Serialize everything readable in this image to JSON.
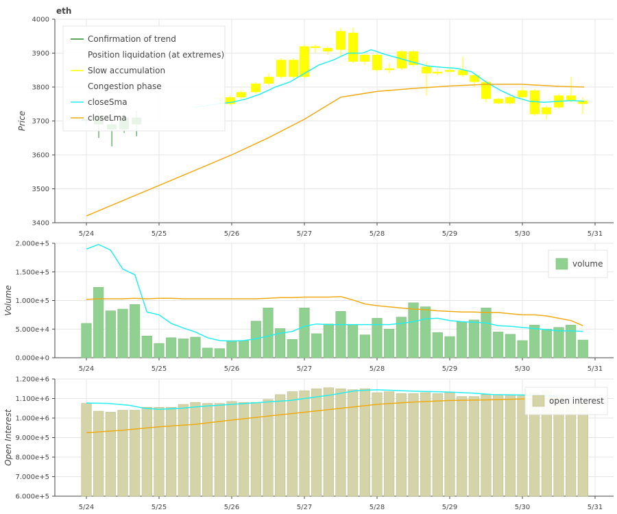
{
  "chart_data": [
    {
      "type": "candlestick",
      "title": "eth",
      "ylabel": "Price",
      "ylim": [
        3400,
        4000
      ],
      "yticks": [
        3400,
        3500,
        3600,
        3700,
        3800,
        3900,
        4000
      ],
      "xticks": [
        "5/24",
        "5/25",
        "5/26",
        "5/27",
        "5/28",
        "5/29",
        "5/30",
        "5/31"
      ],
      "x_start_day": 24,
      "colors": {
        "confirmation": "#228b22",
        "slow_accumulation": "#ffff00",
        "closeSma": "#22eeee",
        "closeLma": "#eeaa11"
      },
      "legend": [
        {
          "label": "Confirmation of trend",
          "color": "#228b22"
        },
        {
          "label": "Position liquidation (at extremes)",
          "color": ""
        },
        {
          "label": "Slow accumulation",
          "color": "#ffff00"
        },
        {
          "label": "Congestion phase",
          "color": ""
        },
        {
          "label": "closeSma",
          "color": "#22eeee"
        },
        {
          "label": "closeLma",
          "color": "#eeaa11"
        }
      ],
      "candles": [
        {
          "t": 0.0,
          "o": 3700,
          "h": 3715,
          "l": 3690,
          "c": 3705,
          "phase": "confirmation"
        },
        {
          "t": 0.17,
          "o": 3715,
          "h": 3725,
          "l": 3650,
          "c": 3690,
          "phase": "confirmation"
        },
        {
          "t": 0.35,
          "o": 3690,
          "h": 3700,
          "l": 3625,
          "c": 3675,
          "phase": "confirmation"
        },
        {
          "t": 0.52,
          "o": 3675,
          "h": 3720,
          "l": 3665,
          "c": 3710,
          "phase": "confirmation"
        },
        {
          "t": 0.69,
          "o": 3710,
          "h": 3730,
          "l": 3655,
          "c": 3690,
          "phase": "confirmation"
        },
        {
          "t": 1.84,
          "o": 3765,
          "h": 3778,
          "l": 3748,
          "c": 3768,
          "phase": "slow_accumulation"
        },
        {
          "t": 1.98,
          "o": 3750,
          "h": 3775,
          "l": 3745,
          "c": 3770,
          "phase": "slow_accumulation"
        },
        {
          "t": 2.13,
          "o": 3770,
          "h": 3790,
          "l": 3765,
          "c": 3785,
          "phase": "slow_accumulation"
        },
        {
          "t": 2.33,
          "o": 3785,
          "h": 3815,
          "l": 3780,
          "c": 3810,
          "phase": "slow_accumulation"
        },
        {
          "t": 2.51,
          "o": 3810,
          "h": 3840,
          "l": 3805,
          "c": 3830,
          "phase": "slow_accumulation"
        },
        {
          "t": 2.68,
          "o": 3830,
          "h": 3885,
          "l": 3825,
          "c": 3880,
          "phase": "slow_accumulation"
        },
        {
          "t": 2.85,
          "o": 3880,
          "h": 3885,
          "l": 3825,
          "c": 3830,
          "phase": "slow_accumulation"
        },
        {
          "t": 3.0,
          "o": 3830,
          "h": 3925,
          "l": 3825,
          "c": 3920,
          "phase": "slow_accumulation"
        },
        {
          "t": 3.15,
          "o": 3915,
          "h": 3925,
          "l": 3900,
          "c": 3920,
          "phase": "slow_accumulation"
        },
        {
          "t": 3.32,
          "o": 3905,
          "h": 3920,
          "l": 3895,
          "c": 3915,
          "phase": "slow_accumulation"
        },
        {
          "t": 3.5,
          "o": 3910,
          "h": 3975,
          "l": 3890,
          "c": 3965,
          "phase": "slow_accumulation"
        },
        {
          "t": 3.67,
          "o": 3960,
          "h": 3975,
          "l": 3870,
          "c": 3875,
          "phase": "slow_accumulation"
        },
        {
          "t": 3.83,
          "o": 3875,
          "h": 3900,
          "l": 3865,
          "c": 3895,
          "phase": "slow_accumulation"
        },
        {
          "t": 4.0,
          "o": 3895,
          "h": 3905,
          "l": 3845,
          "c": 3850,
          "phase": "slow_accumulation"
        },
        {
          "t": 4.17,
          "o": 3850,
          "h": 3870,
          "l": 3840,
          "c": 3855,
          "phase": "slow_accumulation"
        },
        {
          "t": 4.34,
          "o": 3855,
          "h": 3910,
          "l": 3850,
          "c": 3905,
          "phase": "slow_accumulation"
        },
        {
          "t": 4.5,
          "o": 3905,
          "h": 3910,
          "l": 3860,
          "c": 3865,
          "phase": "slow_accumulation"
        },
        {
          "t": 4.68,
          "o": 3860,
          "h": 3875,
          "l": 3775,
          "c": 3840,
          "phase": "slow_accumulation"
        },
        {
          "t": 4.83,
          "o": 3840,
          "h": 3855,
          "l": 3835,
          "c": 3845,
          "phase": "slow_accumulation"
        },
        {
          "t": 5.0,
          "o": 3845,
          "h": 3860,
          "l": 3840,
          "c": 3850,
          "phase": "slow_accumulation"
        },
        {
          "t": 5.18,
          "o": 3850,
          "h": 3890,
          "l": 3830,
          "c": 3835,
          "phase": "slow_accumulation"
        },
        {
          "t": 5.34,
          "o": 3835,
          "h": 3840,
          "l": 3800,
          "c": 3815,
          "phase": "slow_accumulation"
        },
        {
          "t": 5.5,
          "o": 3815,
          "h": 3820,
          "l": 3755,
          "c": 3765,
          "phase": "slow_accumulation"
        },
        {
          "t": 5.67,
          "o": 3765,
          "h": 3768,
          "l": 3750,
          "c": 3752,
          "phase": "slow_accumulation"
        },
        {
          "t": 5.83,
          "o": 3752,
          "h": 3775,
          "l": 3748,
          "c": 3770,
          "phase": "slow_accumulation"
        },
        {
          "t": 6.0,
          "o": 3770,
          "h": 3800,
          "l": 3760,
          "c": 3790,
          "phase": "slow_accumulation"
        },
        {
          "t": 6.17,
          "o": 3790,
          "h": 3795,
          "l": 3715,
          "c": 3720,
          "phase": "slow_accumulation"
        },
        {
          "t": 6.33,
          "o": 3720,
          "h": 3745,
          "l": 3705,
          "c": 3740,
          "phase": "slow_accumulation"
        },
        {
          "t": 6.5,
          "o": 3740,
          "h": 3780,
          "l": 3735,
          "c": 3775,
          "phase": "slow_accumulation"
        },
        {
          "t": 6.67,
          "o": 3775,
          "h": 3830,
          "l": 3755,
          "c": 3760,
          "phase": "slow_accumulation"
        },
        {
          "t": 6.83,
          "o": 3760,
          "h": 3770,
          "l": 3720,
          "c": 3750,
          "phase": "slow_accumulation"
        }
      ],
      "series": [
        {
          "name": "closeSma",
          "color": "#22eeee",
          "points": [
            [
              1.5,
              3740
            ],
            [
              1.8,
              3750
            ],
            [
              2.0,
              3755
            ],
            [
              2.2,
              3765
            ],
            [
              2.4,
              3780
            ],
            [
              2.6,
              3800
            ],
            [
              2.8,
              3815
            ],
            [
              3.0,
              3840
            ],
            [
              3.2,
              3865
            ],
            [
              3.4,
              3880
            ],
            [
              3.6,
              3900
            ],
            [
              3.8,
              3900
            ],
            [
              3.92,
              3910
            ],
            [
              4.1,
              3897
            ],
            [
              4.3,
              3885
            ],
            [
              4.5,
              3873
            ],
            [
              4.7,
              3862
            ],
            [
              4.9,
              3858
            ],
            [
              5.1,
              3855
            ],
            [
              5.3,
              3845
            ],
            [
              5.5,
              3815
            ],
            [
              5.7,
              3790
            ],
            [
              5.9,
              3770
            ],
            [
              6.1,
              3758
            ],
            [
              6.3,
              3755
            ],
            [
              6.5,
              3758
            ],
            [
              6.7,
              3760
            ],
            [
              6.85,
              3758
            ]
          ]
        },
        {
          "name": "closeLma",
          "color": "#eeaa11",
          "points": [
            [
              0.0,
              3420
            ],
            [
              0.3,
              3447
            ],
            [
              0.5,
              3465
            ],
            [
              1.0,
              3510
            ],
            [
              1.5,
              3555
            ],
            [
              2.0,
              3600
            ],
            [
              2.5,
              3650
            ],
            [
              3.0,
              3705
            ],
            [
              3.5,
              3770
            ],
            [
              4.0,
              3787
            ],
            [
              4.5,
              3796
            ],
            [
              5.0,
              3803
            ],
            [
              5.5,
              3808
            ],
            [
              6.0,
              3808
            ],
            [
              6.5,
              3802
            ],
            [
              6.85,
              3800
            ]
          ]
        }
      ]
    },
    {
      "type": "bar",
      "ylabel": "Volume",
      "ylim": [
        0,
        200000
      ],
      "yticks": [
        0,
        50000,
        100000,
        150000,
        200000
      ],
      "ytick_labels": [
        "0.000e+0",
        "5.000e+4",
        "1.000e+5",
        "1.500e+5",
        "2.000e+5"
      ],
      "xticks": [
        "5/24",
        "5/25",
        "5/26",
        "5/27",
        "5/28",
        "5/29",
        "5/30",
        "5/31"
      ],
      "bar_color": "#90d090",
      "legend": [
        {
          "label": "volume",
          "color": "#90d090"
        }
      ],
      "values": [
        60000,
        123000,
        82000,
        85000,
        93000,
        38000,
        25000,
        35000,
        33000,
        36000,
        17000,
        16000,
        30000,
        30000,
        64000,
        87000,
        51000,
        32000,
        87000,
        42000,
        59000,
        81000,
        58000,
        40000,
        69000,
        50000,
        71000,
        96000,
        89000,
        44000,
        37000,
        63000,
        66000,
        87000,
        45000,
        41000,
        30000,
        57000,
        50000,
        53000,
        57000,
        31000
      ],
      "series": [
        {
          "name": "closeSma",
          "color": "#22eeee",
          "values": [
            190000,
            198000,
            188000,
            155000,
            145000,
            80000,
            75000,
            60000,
            52000,
            45000,
            35000,
            30000,
            29000,
            30000,
            33000,
            38000,
            43000,
            46000,
            55000,
            59000,
            58000,
            58000,
            58000,
            58000,
            58000,
            58000,
            60000,
            63000,
            68000,
            69000,
            65000,
            63000,
            62000,
            61000,
            56000,
            55000,
            53000,
            51000,
            49000,
            47000,
            47000,
            46000
          ]
        },
        {
          "name": "closeLma",
          "color": "#eeaa11",
          "values": [
            102000,
            103000,
            103000,
            103000,
            104000,
            103000,
            104000,
            104000,
            103000,
            103000,
            103000,
            103000,
            103000,
            103000,
            103000,
            104000,
            105000,
            105000,
            106000,
            106000,
            106000,
            107000,
            101000,
            94000,
            91000,
            89000,
            87000,
            85000,
            84000,
            82000,
            81000,
            80000,
            80000,
            79000,
            79000,
            77000,
            75000,
            75000,
            73000,
            69000,
            65000,
            56000
          ]
        }
      ]
    },
    {
      "type": "bar",
      "ylabel": "Open Interest",
      "ylim": [
        600000,
        1200000
      ],
      "yticks": [
        600000,
        700000,
        800000,
        900000,
        1000000,
        1100000,
        1200000
      ],
      "ytick_labels": [
        "6.000e+5",
        "7.000e+5",
        "8.000e+5",
        "9.000e+5",
        "1.000e+6",
        "1.100e+6",
        "1.200e+6"
      ],
      "xticks": [
        "5/24",
        "5/25",
        "5/26",
        "5/27",
        "5/28",
        "5/29",
        "5/30",
        "5/31"
      ],
      "bar_color": "#d4d4a8",
      "legend": [
        {
          "label": "open interest",
          "color": "#d4d4a8"
        }
      ],
      "values": [
        1075000,
        1035000,
        1030000,
        1040000,
        1040000,
        1055000,
        1055000,
        1055000,
        1070000,
        1080000,
        1075000,
        1075000,
        1085000,
        1080000,
        1080000,
        1095000,
        1120000,
        1135000,
        1140000,
        1150000,
        1155000,
        1150000,
        1145000,
        1150000,
        1130000,
        1135000,
        1125000,
        1125000,
        1130000,
        1125000,
        1130000,
        1110000,
        1110000,
        1120000,
        1120000,
        1120000,
        1120000,
        1130000,
        1140000,
        1120000,
        1080000,
        1080000
      ],
      "series": [
        {
          "name": "closeSma",
          "color": "#22eeee",
          "points": [
            [
              0.0,
              1077000
            ],
            [
              0.3,
              1075000
            ],
            [
              0.6,
              1065000
            ],
            [
              0.8,
              1050000
            ],
            [
              1.0,
              1045000
            ],
            [
              1.3,
              1050000
            ],
            [
              1.6,
              1060000
            ],
            [
              2.0,
              1070000
            ],
            [
              2.4,
              1080000
            ],
            [
              2.8,
              1090000
            ],
            [
              3.1,
              1105000
            ],
            [
              3.4,
              1120000
            ],
            [
              3.7,
              1140000
            ],
            [
              4.0,
              1145000
            ],
            [
              4.5,
              1138000
            ],
            [
              5.0,
              1133000
            ],
            [
              5.3,
              1128000
            ],
            [
              5.6,
              1120000
            ],
            [
              6.0,
              1118000
            ],
            [
              6.3,
              1115000
            ],
            [
              6.5,
              1113000
            ]
          ]
        },
        {
          "name": "closeLma",
          "color": "#eeaa11",
          "points": [
            [
              0.0,
              925000
            ],
            [
              0.5,
              938000
            ],
            [
              1.0,
              955000
            ],
            [
              1.5,
              968000
            ],
            [
              2.0,
              990000
            ],
            [
              2.5,
              1010000
            ],
            [
              3.0,
              1030000
            ],
            [
              3.5,
              1050000
            ],
            [
              4.0,
              1070000
            ],
            [
              4.5,
              1082000
            ],
            [
              5.0,
              1090000
            ],
            [
              5.5,
              1093000
            ],
            [
              6.0,
              1098000
            ],
            [
              6.5,
              1100000
            ]
          ]
        }
      ]
    }
  ]
}
